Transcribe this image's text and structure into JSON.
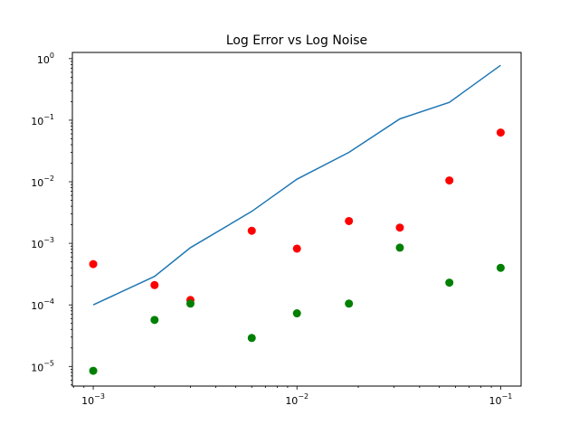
{
  "chart_data": {
    "type": "line",
    "title": "Log Error vs Log Noise",
    "xlabel": "",
    "ylabel": "",
    "xscale": "log",
    "yscale": "log",
    "xlim": [
      0.00079,
      0.126
    ],
    "ylim": [
      4.8e-06,
      1.26
    ],
    "grid": false,
    "legend": "none",
    "x_ticks": [
      {
        "value": 0.001,
        "base": "10",
        "exp": "−3"
      },
      {
        "value": 0.01,
        "base": "10",
        "exp": "−2"
      },
      {
        "value": 0.1,
        "base": "10",
        "exp": "−1"
      }
    ],
    "y_ticks": [
      {
        "value": 1e-05,
        "base": "10",
        "exp": "−5"
      },
      {
        "value": 0.0001,
        "base": "10",
        "exp": "−4"
      },
      {
        "value": 0.001,
        "base": "10",
        "exp": "−3"
      },
      {
        "value": 0.01,
        "base": "10",
        "exp": "−2"
      },
      {
        "value": 0.1,
        "base": "10",
        "exp": "−1"
      },
      {
        "value": 1,
        "base": "10",
        "exp": "0"
      }
    ],
    "x": [
      0.001,
      0.002,
      0.003,
      0.006,
      0.01,
      0.018,
      0.032,
      0.056,
      0.1
    ],
    "series": [
      {
        "style": "line",
        "color": "#1f77b4",
        "values": [
          0.0001,
          0.00029,
          0.00085,
          0.0033,
          0.011,
          0.03,
          0.105,
          0.195,
          0.78
        ]
      },
      {
        "style": "scatter",
        "color": "#ff0000",
        "values": [
          0.00046,
          0.00021,
          0.00012,
          0.0016,
          0.00082,
          0.0023,
          0.0018,
          0.0105,
          0.063
        ]
      },
      {
        "style": "scatter",
        "color": "#008000",
        "values": [
          8.5e-06,
          5.7e-05,
          0.000105,
          2.9e-05,
          7.3e-05,
          0.000105,
          0.00085,
          0.00023,
          0.0004
        ]
      }
    ]
  }
}
